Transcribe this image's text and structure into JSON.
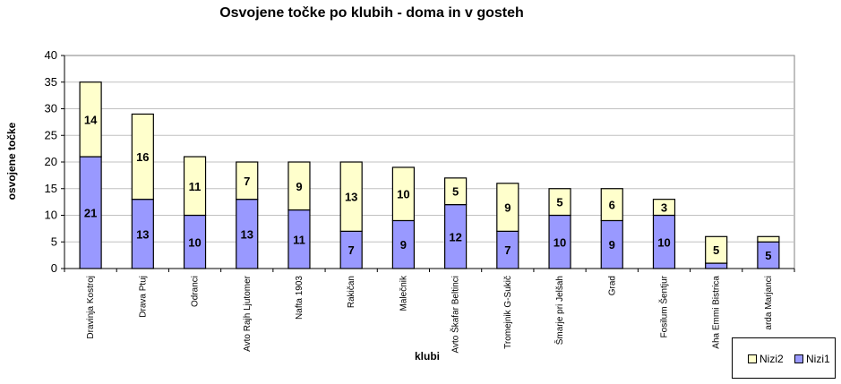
{
  "chart_data": {
    "type": "bar",
    "stacked": true,
    "title": "Osvojene točke po klubih - doma in v gosteh",
    "xlabel": "klubi",
    "ylabel": "osvojene točke",
    "ylim": [
      0,
      40
    ],
    "yticks": [
      "0",
      "5",
      "10",
      "15",
      "20",
      "25",
      "30",
      "35",
      "40"
    ],
    "grid": true,
    "legend_position": "bottom-right",
    "categories": [
      "Dravinja Kostroj",
      "Drava Ptuj",
      "Odranci",
      "Avto Rajh Ljutomer",
      "Nafta 1903",
      "Rakičan",
      "Malečnik",
      "Avto Škafar Beltinci",
      "Tromejnik G-Sukič",
      "Šmarje pri Jelšah",
      "Grad",
      "Fosilum Šentjur",
      "Aha Emmi Bistrica",
      "Zarda Marjanci"
    ],
    "category_labels": [
      "Dravinja Kostroj",
      "Drava Ptuj",
      "Odranci",
      "Avto Rajh Ljutomer",
      "Nafta 1903",
      "Rakičan",
      "Malečnik",
      "Avto Škafar Beltinci",
      "Tromejnik G-Sukič",
      "Šmarje pri Jelšah",
      "Grad",
      "Fosilum Šentjur",
      "Aha Emmi Bistrica",
      "arda Marjanci"
    ],
    "series": [
      {
        "name": "Nizi1",
        "color": "#9999ff",
        "values": [
          21,
          13,
          10,
          13,
          11,
          7,
          9,
          12,
          7,
          10,
          9,
          10,
          1,
          5
        ],
        "labels": [
          "21",
          "13",
          "10",
          "13",
          "11",
          "7",
          "9",
          "12",
          "7",
          "10",
          "9",
          "10",
          "",
          "5"
        ]
      },
      {
        "name": "Nizi2",
        "color": "#ffffcc",
        "values": [
          14,
          16,
          11,
          7,
          9,
          13,
          10,
          5,
          9,
          5,
          6,
          3,
          5,
          1
        ],
        "labels": [
          "14",
          "16",
          "11",
          "7",
          "9",
          "13",
          "10",
          "5",
          "9",
          "5",
          "6",
          "3",
          "5",
          ""
        ]
      }
    ],
    "plot_color": "#ffffff",
    "grid_color": "#c0c0c0"
  }
}
